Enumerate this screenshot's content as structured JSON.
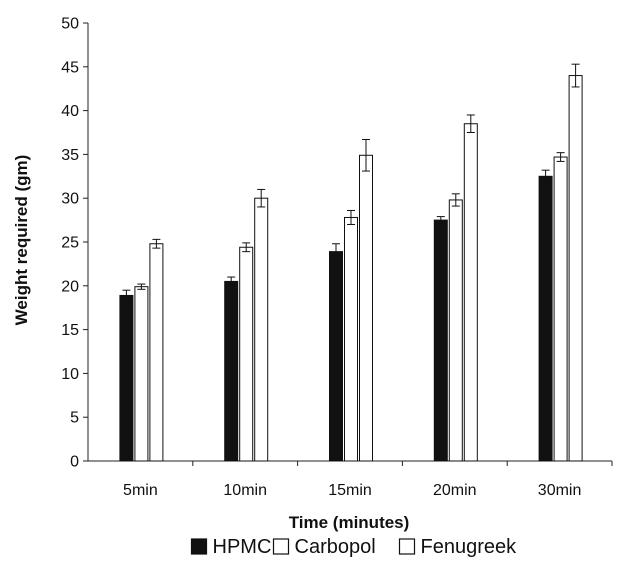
{
  "chart_data": {
    "type": "bar",
    "categories": [
      "5min",
      "10min",
      "15min",
      "20min",
      "30min"
    ],
    "series": [
      {
        "name": "HPMC",
        "values": [
          18.9,
          20.5,
          23.9,
          27.5,
          32.5
        ],
        "errors": [
          0.6,
          0.5,
          0.9,
          0.4,
          0.7
        ],
        "color": "#111111"
      },
      {
        "name": "Carbopol",
        "values": [
          19.9,
          24.4,
          27.8,
          29.8,
          34.7
        ],
        "errors": [
          0.3,
          0.5,
          0.8,
          0.7,
          0.5
        ],
        "color": "#ffffff"
      },
      {
        "name": "Fenugreek",
        "values": [
          24.8,
          30.0,
          34.9,
          38.5,
          44.0
        ],
        "errors": [
          0.5,
          1.0,
          1.8,
          1.0,
          1.3
        ],
        "color": "#ffffff"
      }
    ],
    "xlabel": "Time (minutes)",
    "ylabel": "Weight required (gm)",
    "ylim": [
      0,
      50
    ],
    "ytick_step": 5,
    "grid": false,
    "legend_position": "bottom"
  }
}
